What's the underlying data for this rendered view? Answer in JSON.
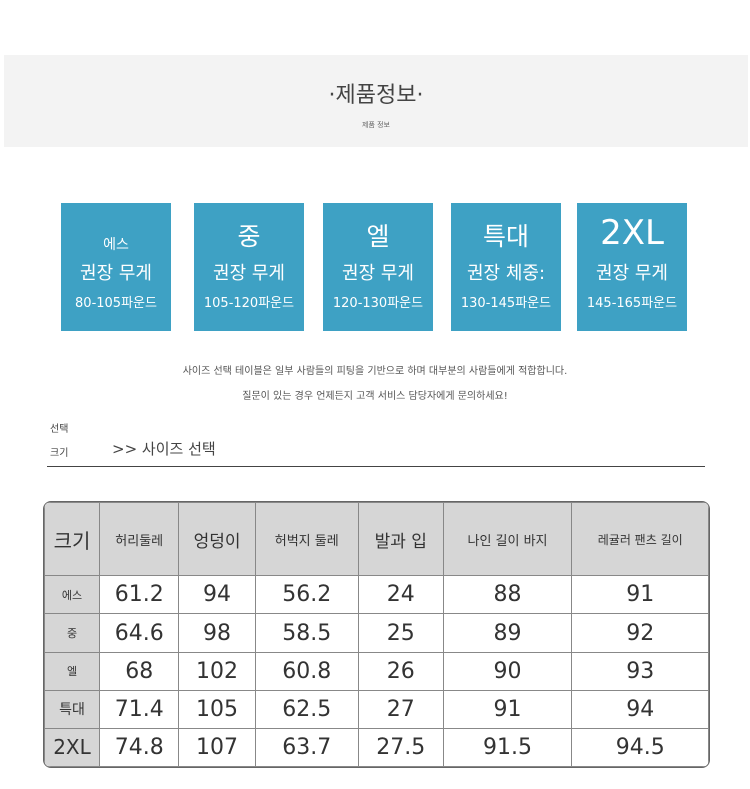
{
  "banner": {
    "title": "·제품정보·",
    "subtitle": "제품 정보"
  },
  "boxes": [
    {
      "name": "에스",
      "rec": "권장 무게",
      "weight": "80-105파운드"
    },
    {
      "name": "중",
      "rec": "권장 무게",
      "weight": "105-120파운드"
    },
    {
      "name": "엘",
      "rec": "권장 무게",
      "weight": "120-130파운드"
    },
    {
      "name": "특대",
      "rec": "권장 체중:",
      "weight": "130-145파운드"
    },
    {
      "name": "2XL",
      "rec": "권장 무게",
      "weight": "145-165파운드"
    }
  ],
  "notes": [
    "사이즈 선택 테이블은 일부 사람들의 피팅을 기반으로 하며 대부분의 사람들에게 적합합니다.",
    "질문이 있는 경우 언제든지 고객 서비스 담당자에게 문의하세요!"
  ],
  "selector": {
    "label1": "선택",
    "label2": "크기",
    "heading": ">> 사이즈 선택"
  },
  "table": {
    "headers": [
      "크기",
      "허리둘레",
      "엉덩이",
      "허벅지 둘레",
      "발과 입",
      "나인 길이 바지",
      "레귤러 팬츠 길이"
    ],
    "rows": [
      [
        "에스",
        "61.2",
        "94",
        "56.2",
        "24",
        "88",
        "91"
      ],
      [
        "중",
        "64.6",
        "98",
        "58.5",
        "25",
        "89",
        "92"
      ],
      [
        "엘",
        "68",
        "102",
        "60.8",
        "26",
        "90",
        "93"
      ],
      [
        "특대",
        "71.4",
        "105",
        "62.5",
        "27",
        "91",
        "94"
      ],
      [
        "2XL",
        "74.8",
        "107",
        "63.7",
        "27.5",
        "91.5",
        "94.5"
      ]
    ]
  }
}
